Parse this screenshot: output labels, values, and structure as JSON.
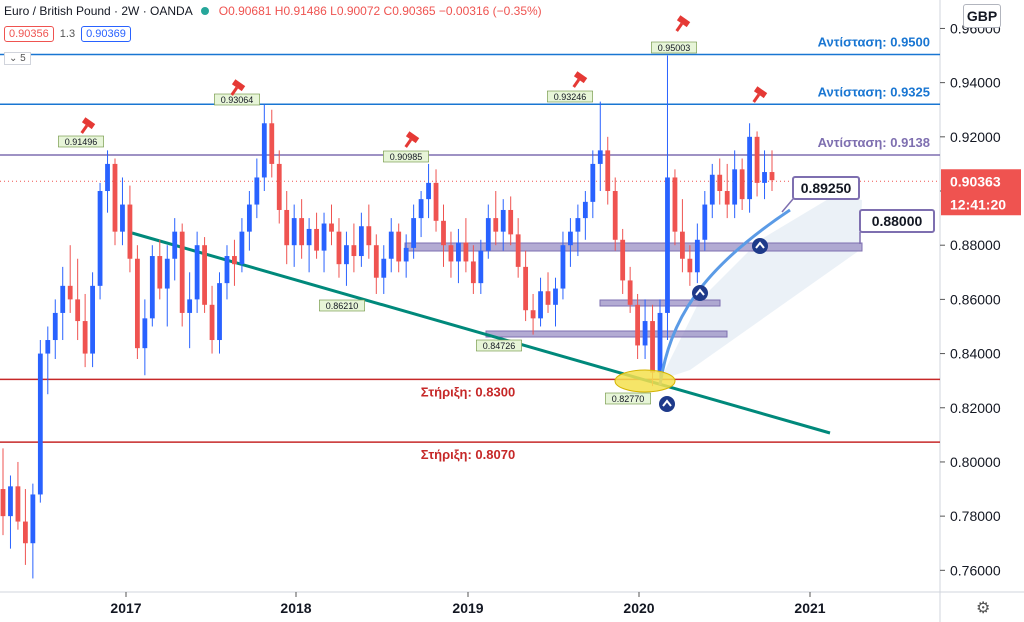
{
  "header": {
    "symbol": "Euro / British Pound · 2W · OANDA",
    "ohlc": "O0.90681 H0.91486 L0.90072 C0.90365 −0.00316 (−0.35%)"
  },
  "quote": {
    "sell": "0.90356",
    "spread": "1.3",
    "buy": "0.90369"
  },
  "indicator_count": "5",
  "currency_button": "GBP",
  "colors": {
    "up": "#2962ff",
    "down": "#ef5350",
    "resistance": "#1976d2",
    "support": "#c62828",
    "trend": "#00897b",
    "band": "#7e6fb0"
  },
  "chart_data": {
    "type": "candlestick",
    "x_ticks": [
      "2017",
      "2018",
      "2019",
      "2020",
      "2021"
    ],
    "y_ticks": [
      "0.96000",
      "0.94000",
      "0.92000",
      "0.90000",
      "0.88000",
      "0.86000",
      "0.84000",
      "0.82000",
      "0.80000",
      "0.78000",
      "0.76000"
    ],
    "ylim": [
      0.752,
      0.9705
    ],
    "last_price": "0.90363",
    "countdown": "12:41:20",
    "resistance_levels": [
      {
        "label": "Αντίσταση: 0.9500",
        "value": 0.9504
      },
      {
        "label": "Αντίσταση: 0.9325",
        "value": 0.932
      },
      {
        "label": "Αντίσταση: 0.9138",
        "value": 0.9133
      }
    ],
    "support_levels": [
      {
        "label": "Στήριξη: 0.8300",
        "value": 0.8305
      },
      {
        "label": "Στήριξη: 0.8070",
        "value": 0.8073
      }
    ],
    "peak_labels": [
      "0.91496",
      "0.93064",
      "0.90985",
      "0.93246",
      "0.95003"
    ],
    "trough_labels": [
      "0.86210",
      "0.84726",
      "0.82770"
    ],
    "callouts": [
      "0.89250",
      "0.88000"
    ],
    "candles": [
      [
        0.79,
        0.805,
        0.773,
        0.78
      ],
      [
        0.78,
        0.795,
        0.768,
        0.791
      ],
      [
        0.791,
        0.8,
        0.775,
        0.778
      ],
      [
        0.778,
        0.79,
        0.762,
        0.77
      ],
      [
        0.77,
        0.792,
        0.757,
        0.788
      ],
      [
        0.788,
        0.845,
        0.785,
        0.84
      ],
      [
        0.84,
        0.85,
        0.825,
        0.845
      ],
      [
        0.845,
        0.86,
        0.838,
        0.855
      ],
      [
        0.855,
        0.872,
        0.845,
        0.865
      ],
      [
        0.865,
        0.88,
        0.855,
        0.86
      ],
      [
        0.86,
        0.875,
        0.845,
        0.852
      ],
      [
        0.852,
        0.862,
        0.835,
        0.84
      ],
      [
        0.84,
        0.87,
        0.835,
        0.865
      ],
      [
        0.865,
        0.903,
        0.86,
        0.9
      ],
      [
        0.9,
        0.915,
        0.892,
        0.91
      ],
      [
        0.91,
        0.912,
        0.88,
        0.885
      ],
      [
        0.885,
        0.905,
        0.88,
        0.895
      ],
      [
        0.895,
        0.902,
        0.87,
        0.875
      ],
      [
        0.875,
        0.88,
        0.838,
        0.842
      ],
      [
        0.842,
        0.86,
        0.832,
        0.853
      ],
      [
        0.853,
        0.88,
        0.85,
        0.876
      ],
      [
        0.876,
        0.882,
        0.86,
        0.864
      ],
      [
        0.864,
        0.88,
        0.85,
        0.875
      ],
      [
        0.875,
        0.89,
        0.867,
        0.885
      ],
      [
        0.885,
        0.888,
        0.85,
        0.855
      ],
      [
        0.855,
        0.87,
        0.842,
        0.86
      ],
      [
        0.86,
        0.885,
        0.855,
        0.88
      ],
      [
        0.88,
        0.883,
        0.855,
        0.858
      ],
      [
        0.858,
        0.865,
        0.84,
        0.845
      ],
      [
        0.845,
        0.87,
        0.84,
        0.866
      ],
      [
        0.866,
        0.88,
        0.86,
        0.876
      ],
      [
        0.876,
        0.882,
        0.865,
        0.873
      ],
      [
        0.873,
        0.89,
        0.87,
        0.885
      ],
      [
        0.885,
        0.9,
        0.878,
        0.895
      ],
      [
        0.895,
        0.912,
        0.89,
        0.905
      ],
      [
        0.905,
        0.932,
        0.9,
        0.925
      ],
      [
        0.925,
        0.93,
        0.905,
        0.91
      ],
      [
        0.91,
        0.915,
        0.888,
        0.893
      ],
      [
        0.893,
        0.9,
        0.873,
        0.88
      ],
      [
        0.88,
        0.895,
        0.872,
        0.89
      ],
      [
        0.89,
        0.897,
        0.875,
        0.88
      ],
      [
        0.88,
        0.89,
        0.87,
        0.886
      ],
      [
        0.886,
        0.892,
        0.875,
        0.878
      ],
      [
        0.878,
        0.892,
        0.87,
        0.888
      ],
      [
        0.888,
        0.895,
        0.88,
        0.885
      ],
      [
        0.885,
        0.89,
        0.868,
        0.873
      ],
      [
        0.873,
        0.885,
        0.865,
        0.88
      ],
      [
        0.88,
        0.888,
        0.87,
        0.876
      ],
      [
        0.876,
        0.892,
        0.872,
        0.887
      ],
      [
        0.887,
        0.895,
        0.875,
        0.88
      ],
      [
        0.88,
        0.884,
        0.862,
        0.868
      ],
      [
        0.868,
        0.88,
        0.862,
        0.875
      ],
      [
        0.875,
        0.89,
        0.87,
        0.885
      ],
      [
        0.885,
        0.888,
        0.87,
        0.874
      ],
      [
        0.874,
        0.884,
        0.868,
        0.879
      ],
      [
        0.879,
        0.895,
        0.875,
        0.89
      ],
      [
        0.89,
        0.9,
        0.883,
        0.897
      ],
      [
        0.897,
        0.91,
        0.89,
        0.903
      ],
      [
        0.903,
        0.908,
        0.885,
        0.889
      ],
      [
        0.889,
        0.895,
        0.872,
        0.88
      ],
      [
        0.88,
        0.885,
        0.868,
        0.874
      ],
      [
        0.874,
        0.886,
        0.866,
        0.881
      ],
      [
        0.881,
        0.89,
        0.87,
        0.874
      ],
      [
        0.874,
        0.88,
        0.862,
        0.866
      ],
      [
        0.866,
        0.882,
        0.862,
        0.878
      ],
      [
        0.878,
        0.895,
        0.875,
        0.89
      ],
      [
        0.89,
        0.9,
        0.88,
        0.885
      ],
      [
        0.885,
        0.897,
        0.878,
        0.893
      ],
      [
        0.893,
        0.898,
        0.88,
        0.884
      ],
      [
        0.884,
        0.89,
        0.868,
        0.872
      ],
      [
        0.872,
        0.878,
        0.852,
        0.856
      ],
      [
        0.856,
        0.862,
        0.847,
        0.853
      ],
      [
        0.853,
        0.868,
        0.85,
        0.863
      ],
      [
        0.863,
        0.87,
        0.855,
        0.858
      ],
      [
        0.858,
        0.868,
        0.85,
        0.864
      ],
      [
        0.864,
        0.885,
        0.86,
        0.88
      ],
      [
        0.88,
        0.89,
        0.872,
        0.885
      ],
      [
        0.885,
        0.895,
        0.876,
        0.89
      ],
      [
        0.89,
        0.9,
        0.882,
        0.896
      ],
      [
        0.896,
        0.915,
        0.89,
        0.91
      ],
      [
        0.91,
        0.933,
        0.9,
        0.915
      ],
      [
        0.915,
        0.92,
        0.895,
        0.9
      ],
      [
        0.9,
        0.905,
        0.878,
        0.882
      ],
      [
        0.882,
        0.886,
        0.862,
        0.867
      ],
      [
        0.867,
        0.872,
        0.855,
        0.858
      ],
      [
        0.858,
        0.862,
        0.838,
        0.843
      ],
      [
        0.843,
        0.86,
        0.838,
        0.852
      ],
      [
        0.852,
        0.858,
        0.828,
        0.833
      ],
      [
        0.833,
        0.86,
        0.83,
        0.855
      ],
      [
        0.855,
        0.95,
        0.845,
        0.905
      ],
      [
        0.905,
        0.908,
        0.88,
        0.885
      ],
      [
        0.885,
        0.897,
        0.87,
        0.875
      ],
      [
        0.875,
        0.88,
        0.865,
        0.87
      ],
      [
        0.87,
        0.888,
        0.866,
        0.882
      ],
      [
        0.882,
        0.9,
        0.878,
        0.895
      ],
      [
        0.895,
        0.91,
        0.89,
        0.906
      ],
      [
        0.906,
        0.912,
        0.895,
        0.9
      ],
      [
        0.9,
        0.91,
        0.89,
        0.895
      ],
      [
        0.895,
        0.915,
        0.89,
        0.908
      ],
      [
        0.908,
        0.912,
        0.893,
        0.897
      ],
      [
        0.897,
        0.925,
        0.892,
        0.92
      ],
      [
        0.92,
        0.922,
        0.898,
        0.903
      ],
      [
        0.903,
        0.915,
        0.897,
        0.907
      ],
      [
        0.907,
        0.915,
        0.9,
        0.904
      ]
    ]
  }
}
